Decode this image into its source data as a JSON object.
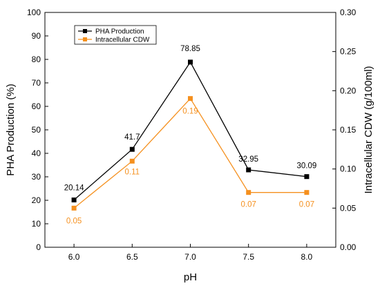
{
  "chart_data": {
    "type": "line",
    "x": [
      6.0,
      6.5,
      7.0,
      7.5,
      8.0
    ],
    "x_tick_labels": [
      "6.0",
      "6.5",
      "7.0",
      "7.5",
      "8.0"
    ],
    "xlabel": "pH",
    "xlim": [
      5.75,
      8.25
    ],
    "ylabel_left": "PHA Production (%)",
    "ylim_left": [
      0,
      100
    ],
    "y_ticks_left": [
      "0",
      "10",
      "20",
      "30",
      "40",
      "50",
      "60",
      "70",
      "80",
      "90",
      "100"
    ],
    "ylabel_right": "Intracellular CDW (g/100ml)",
    "ylim_right": [
      0,
      0.3
    ],
    "y_ticks_right": [
      "0.00",
      "0.05",
      "0.10",
      "0.15",
      "0.20",
      "0.25",
      "0.30"
    ],
    "legend_position": "top-left",
    "grid": false,
    "series": [
      {
        "name": "PHA Production",
        "axis": "left",
        "color": "#000000",
        "marker": "square",
        "values": [
          20.14,
          41.7,
          78.85,
          32.95,
          30.09
        ],
        "labels": [
          "20.14",
          "41.7",
          "78.85",
          "32.95",
          "30.09"
        ]
      },
      {
        "name": "Intracellular CDW",
        "axis": "right",
        "color": "#f5901e",
        "marker": "square",
        "values": [
          0.05,
          0.11,
          0.19,
          0.07,
          0.07
        ],
        "labels": [
          "0.05",
          "0.11",
          "0.19",
          "0.07",
          "0.07"
        ]
      }
    ]
  }
}
